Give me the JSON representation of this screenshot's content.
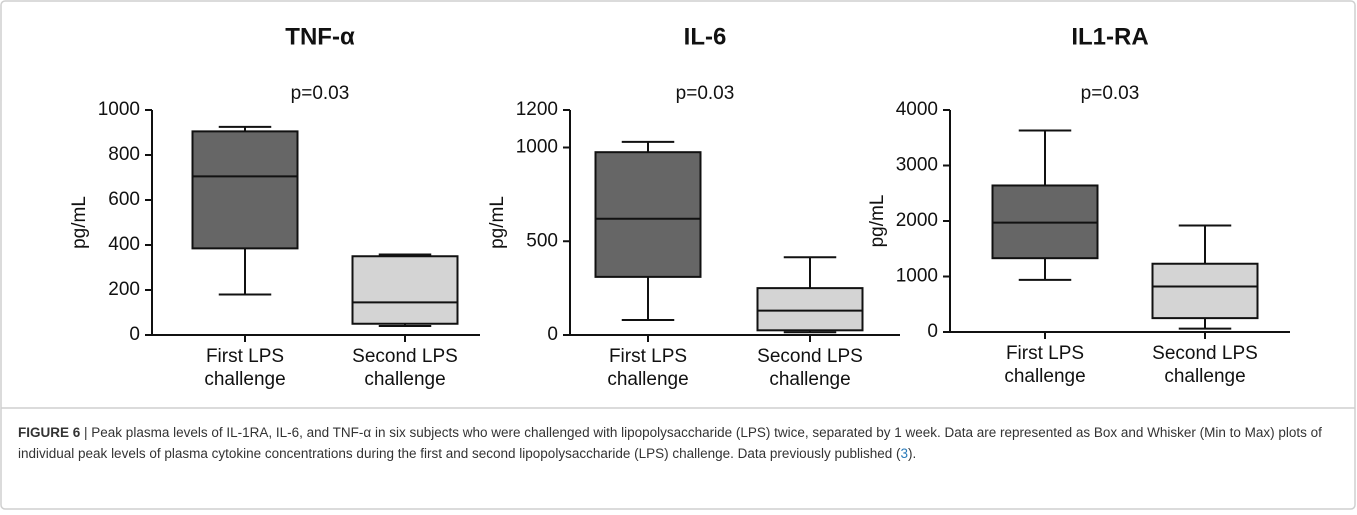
{
  "chart_data": [
    {
      "type": "box",
      "title": "TNF-α",
      "annotation": "p=0.03",
      "ylabel": "pg/mL",
      "categories": [
        "First LPS challenge",
        "Second LPS challenge"
      ],
      "colors": [
        "#666666",
        "#d4d4d4"
      ],
      "boxes": [
        {
          "min": 180,
          "q1": 385,
          "median": 705,
          "q3": 905,
          "max": 925
        },
        {
          "min": 40,
          "q1": 50,
          "median": 145,
          "q3": 350,
          "max": 358
        }
      ],
      "ylim": [
        0,
        1000
      ],
      "yticks": [
        0,
        200,
        400,
        600,
        800,
        1000
      ]
    },
    {
      "type": "box",
      "title": "IL-6",
      "annotation": "p=0.03",
      "ylabel": "pg/mL",
      "categories": [
        "First LPS challenge",
        "Second LPS challenge"
      ],
      "colors": [
        "#666666",
        "#d4d4d4"
      ],
      "boxes": [
        {
          "min": 80,
          "q1": 310,
          "median": 620,
          "q3": 975,
          "max": 1030
        },
        {
          "min": 15,
          "q1": 25,
          "median": 130,
          "q3": 250,
          "max": 415
        }
      ],
      "ylim": [
        0,
        1200
      ],
      "yticks": [
        0,
        500,
        1000,
        1200
      ]
    },
    {
      "type": "box",
      "title": "IL1-RA",
      "annotation": "p=0.03",
      "ylabel": "pg/mL",
      "categories": [
        "First LPS challenge",
        "Second LPS challenge"
      ],
      "colors": [
        "#666666",
        "#d4d4d4"
      ],
      "boxes": [
        {
          "min": 940,
          "q1": 1330,
          "median": 1970,
          "q3": 2640,
          "max": 3630
        },
        {
          "min": 60,
          "q1": 250,
          "median": 820,
          "q3": 1230,
          "max": 1920
        }
      ],
      "ylim": [
        0,
        4000
      ],
      "yticks": [
        0,
        1000,
        2000,
        3000,
        4000
      ]
    }
  ],
  "caption": {
    "label": "FIGURE 6",
    "text": "| Peak plasma levels of IL-1RA, IL-6, and TNF-α in six subjects who were challenged with lipopolysaccharide (LPS) twice, separated by 1 week. Data are represented as Box and Whisker (Min to Max) plots of individual peak levels of plasma cytokine concentrations during the first and second lipopolysaccharide (LPS) challenge. Data previously published (",
    "ref": "3",
    "text_end": ")."
  }
}
